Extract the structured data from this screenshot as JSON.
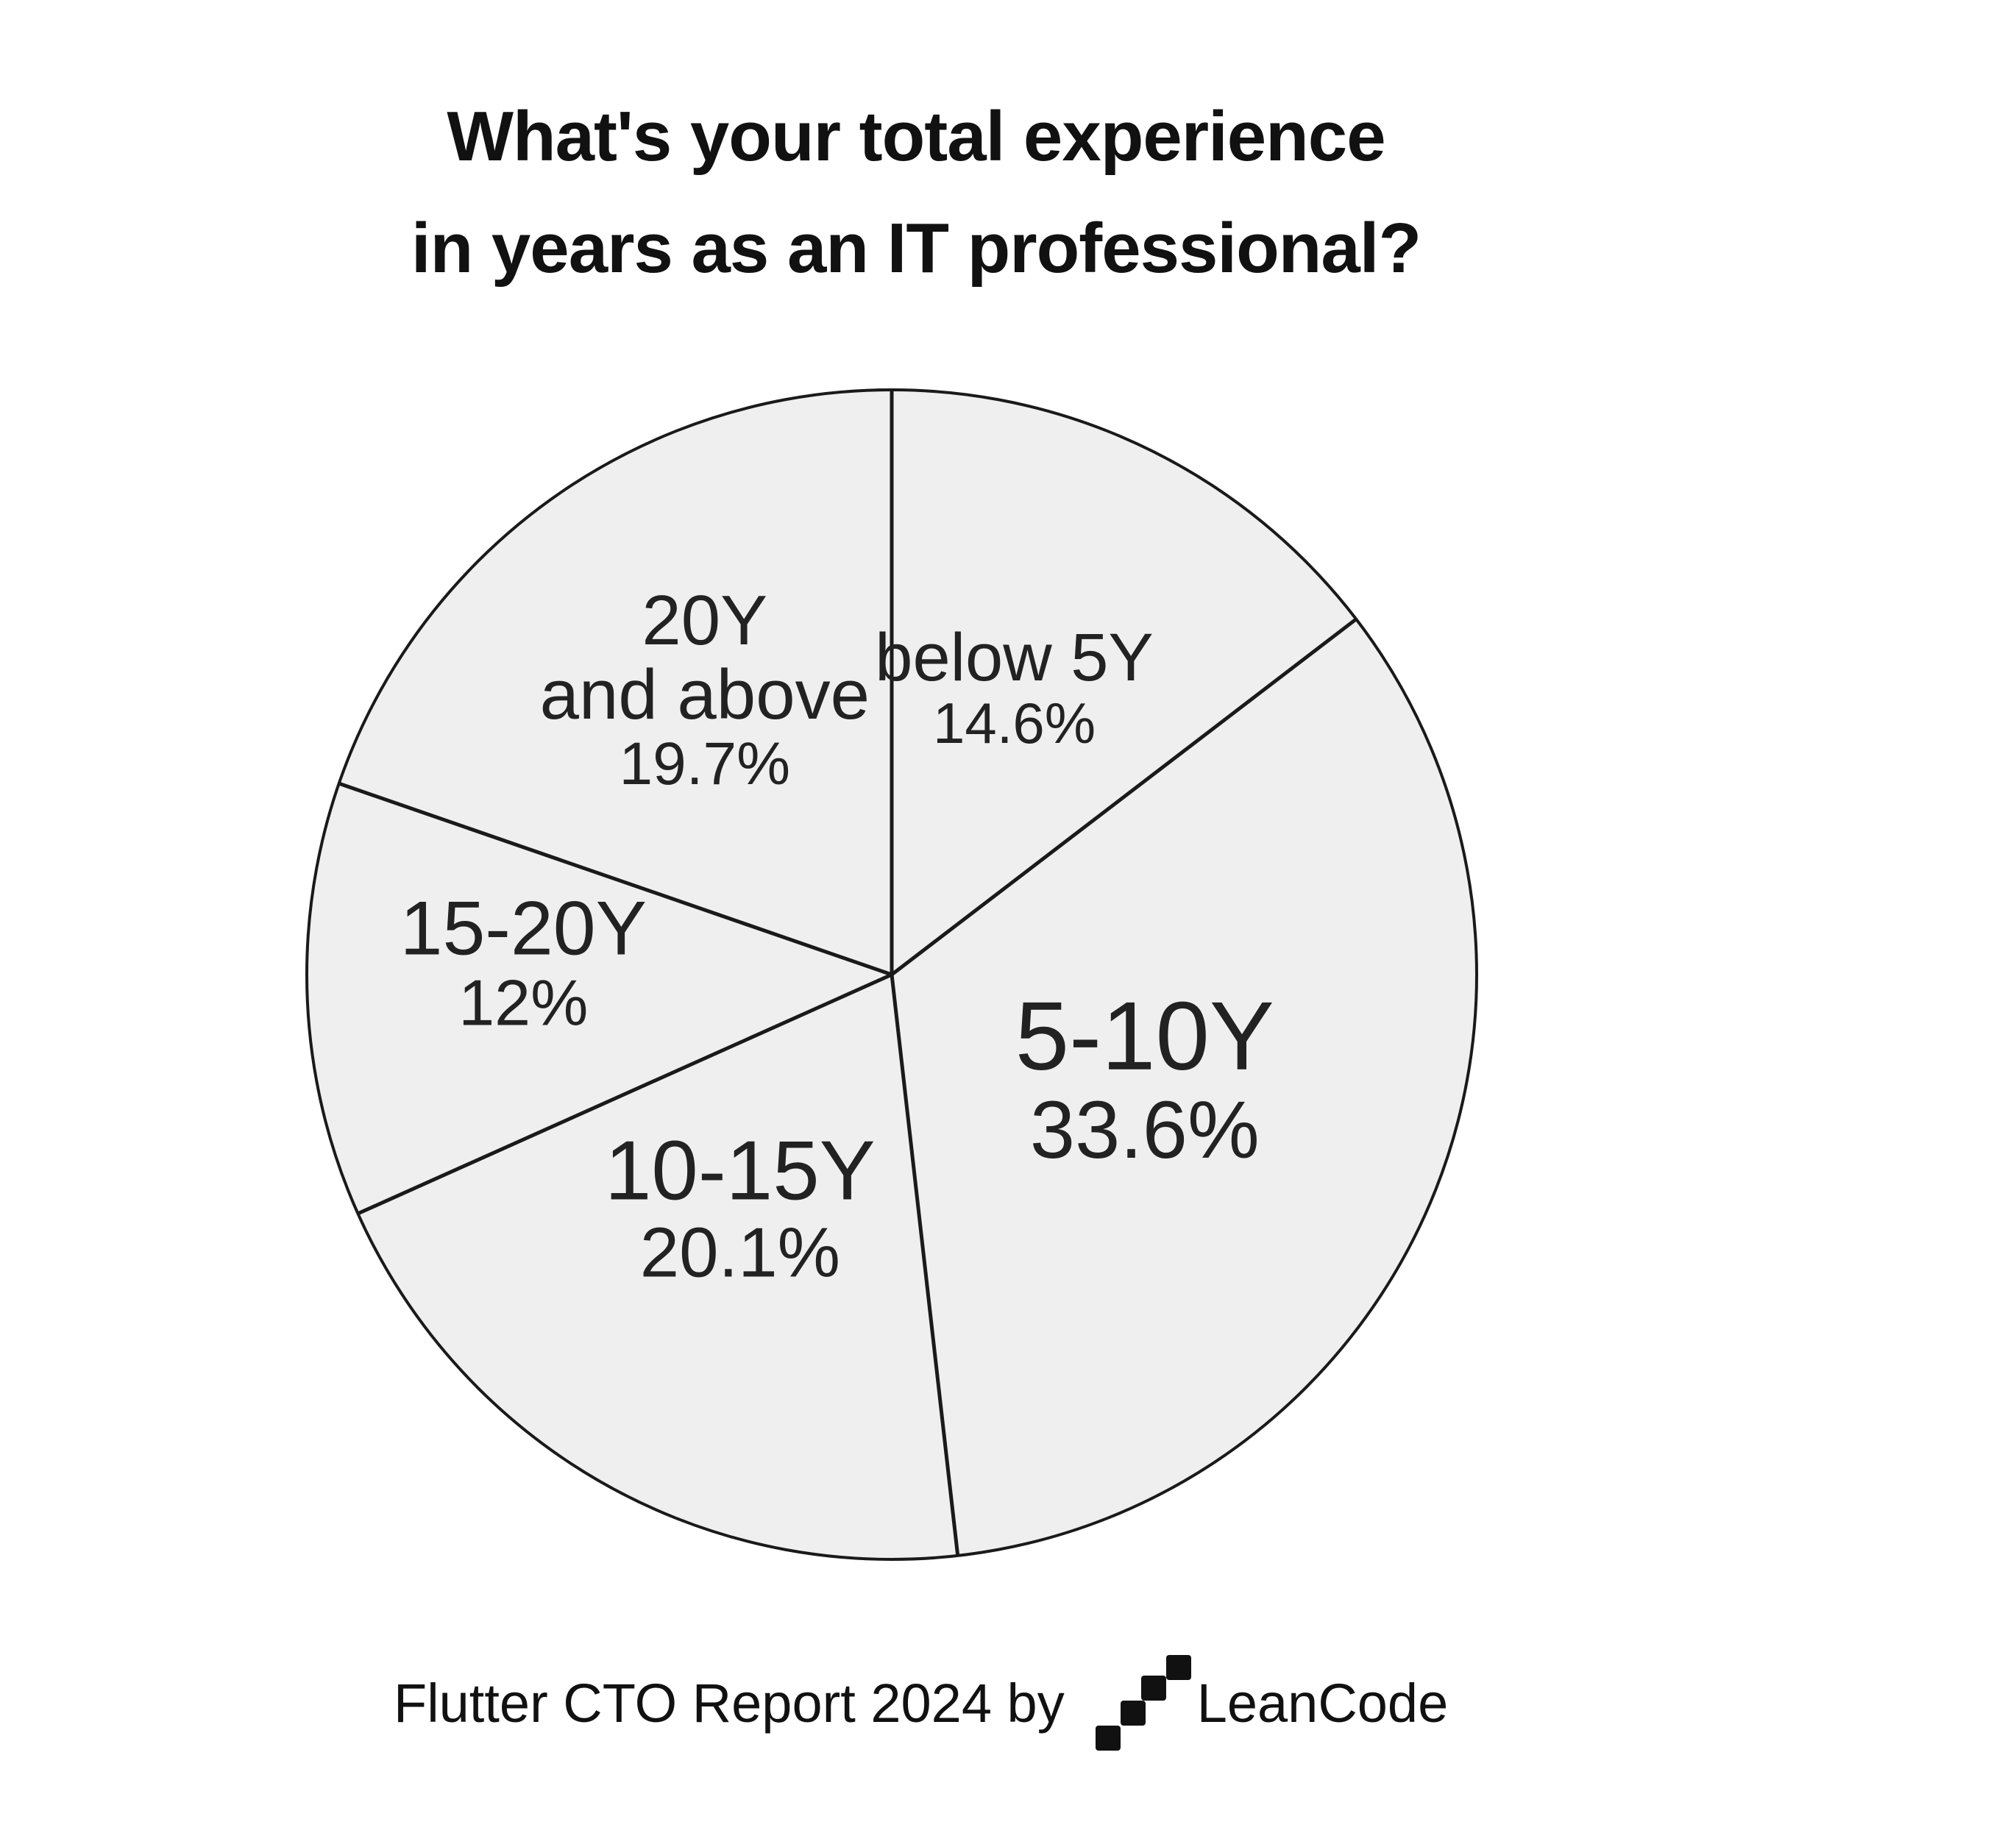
{
  "title": {
    "line1": "What's your total experience",
    "line2": "in years as an IT professional?"
  },
  "chart_data": {
    "type": "pie",
    "title": "What's your total experience in years as an IT professional?",
    "slices": [
      {
        "label": "below 5Y",
        "value": 14.6,
        "display": "14.6%"
      },
      {
        "label": "5-10Y",
        "value": 33.6,
        "display": "33.6%"
      },
      {
        "label": "10-15Y",
        "value": 20.1,
        "display": "20.1%"
      },
      {
        "label": "15-20Y",
        "value": 12,
        "display": "12%"
      },
      {
        "label": "20Y and above",
        "value": 19.7,
        "display": "19.7%"
      }
    ],
    "slice_color": "#efefef",
    "edge_color": "#1a1a1a",
    "start_angle": "12 o'clock, clockwise"
  },
  "footer": {
    "text": "Flutter CTO Report 2024 by",
    "brand": "LeanCode"
  }
}
